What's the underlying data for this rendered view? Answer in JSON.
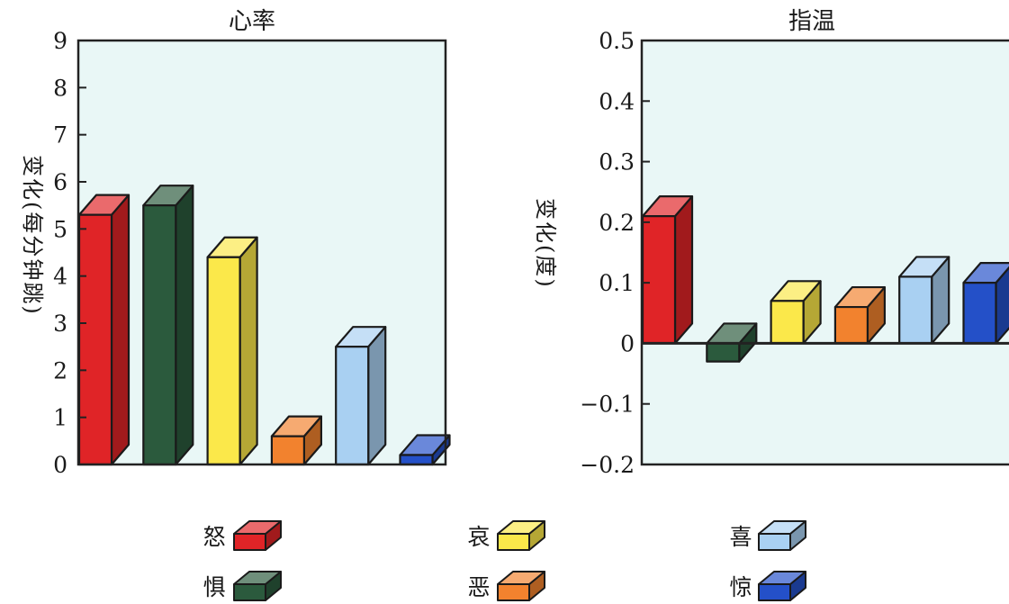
{
  "colors": {
    "plot_bg": "#e9f7f6",
    "axis": "#222222",
    "emotions": {
      "怒": "#e02427",
      "惧": "#2b5a3d",
      "哀": "#fbe84a",
      "恶": "#f2822e",
      "喜": "#a9d0f2",
      "惊": "#2450c8"
    }
  },
  "legend": {
    "items": [
      {
        "label": "怒"
      },
      {
        "label": "惧"
      },
      {
        "label": "哀"
      },
      {
        "label": "恶"
      },
      {
        "label": "喜"
      },
      {
        "label": "惊"
      }
    ]
  },
  "chart_data": [
    {
      "type": "bar",
      "title": "心率",
      "ylabel": "变化(每分钟跳)",
      "xlabel": "",
      "categories": [
        "怒",
        "惧",
        "哀",
        "恶",
        "喜",
        "惊"
      ],
      "values": [
        5.3,
        5.5,
        4.4,
        0.6,
        2.5,
        0.2
      ],
      "ylim": [
        0,
        9
      ],
      "yticks": [
        "0",
        "1",
        "2",
        "3",
        "4",
        "5",
        "6",
        "7",
        "8",
        "9"
      ],
      "grid": false,
      "legend": "bottom"
    },
    {
      "type": "bar",
      "title": "指温",
      "ylabel": "变化(度)",
      "xlabel": "",
      "categories": [
        "怒",
        "惧",
        "哀",
        "恶",
        "喜",
        "惊"
      ],
      "values": [
        0.21,
        -0.03,
        0.07,
        0.06,
        0.11,
        0.1
      ],
      "ylim": [
        -0.2,
        0.5
      ],
      "yticks": [
        "−0.2",
        "−0.1",
        "0",
        "0.1",
        "0.2",
        "0.3",
        "0.4",
        "0.5"
      ],
      "grid": false,
      "legend": "bottom"
    }
  ]
}
